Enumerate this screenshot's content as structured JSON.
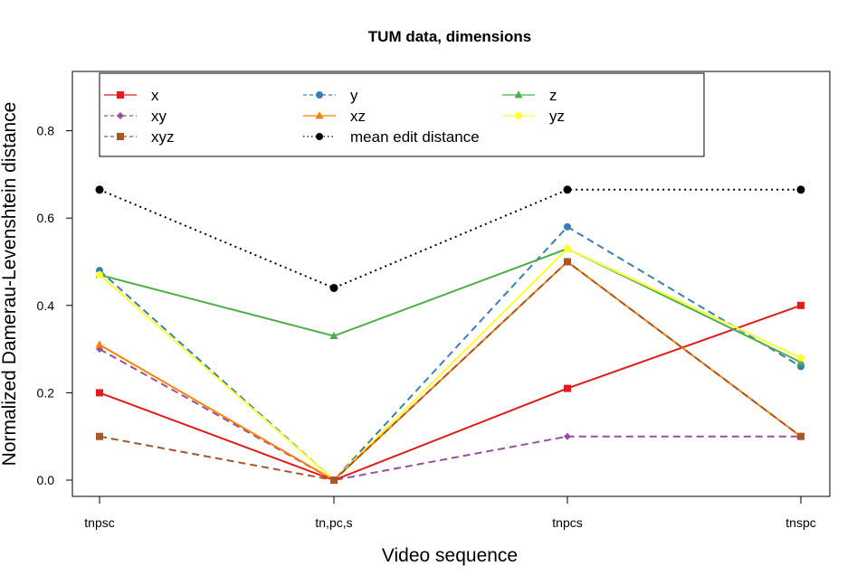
{
  "chart_data": {
    "type": "line",
    "title": "TUM data, dimensions",
    "xlabel": "Video sequence",
    "ylabel": "Normalized Damerau-Levenshtein distance",
    "categories": [
      "tnpsc",
      "tn,pc,s",
      "tnpcs",
      "tnspc"
    ],
    "yticks": [
      "0.0",
      "0.2",
      "0.4",
      "0.6",
      "0.8"
    ],
    "ylim": [
      -0.04,
      0.93
    ],
    "grid": false,
    "legend_position": "top-left",
    "series": [
      {
        "name": "x",
        "values": [
          0.2,
          0.0,
          0.21,
          0.4
        ],
        "color": "#E41A1C",
        "marker": "square",
        "dash": "solid"
      },
      {
        "name": "y",
        "values": [
          0.48,
          0.0,
          0.58,
          0.26
        ],
        "color": "#377EB8",
        "marker": "circle",
        "dash": "dashed"
      },
      {
        "name": "z",
        "values": [
          0.47,
          0.33,
          0.53,
          0.27
        ],
        "color": "#4DAF4A",
        "marker": "triangle",
        "dash": "solid"
      },
      {
        "name": "xy",
        "values": [
          0.3,
          0.0,
          0.1,
          0.1
        ],
        "color": "#984EA3",
        "marker": "diamond",
        "dash": "dashed"
      },
      {
        "name": "xz",
        "values": [
          0.31,
          0.0,
          0.5,
          0.1
        ],
        "color": "#FF7F00",
        "marker": "triangle",
        "dash": "solid"
      },
      {
        "name": "yz",
        "values": [
          0.47,
          0.0,
          0.53,
          0.28
        ],
        "color": "#FFFF33",
        "marker": "circle",
        "dash": "solid"
      },
      {
        "name": "xyz",
        "values": [
          0.1,
          0.0,
          0.5,
          0.1
        ],
        "color": "#A65628",
        "marker": "square",
        "dash": "dashed"
      },
      {
        "name": "mean edit distance",
        "values": [
          0.665,
          0.44,
          0.665,
          0.665
        ],
        "color": "#000000",
        "marker": "circle",
        "dash": "dotted"
      }
    ]
  }
}
